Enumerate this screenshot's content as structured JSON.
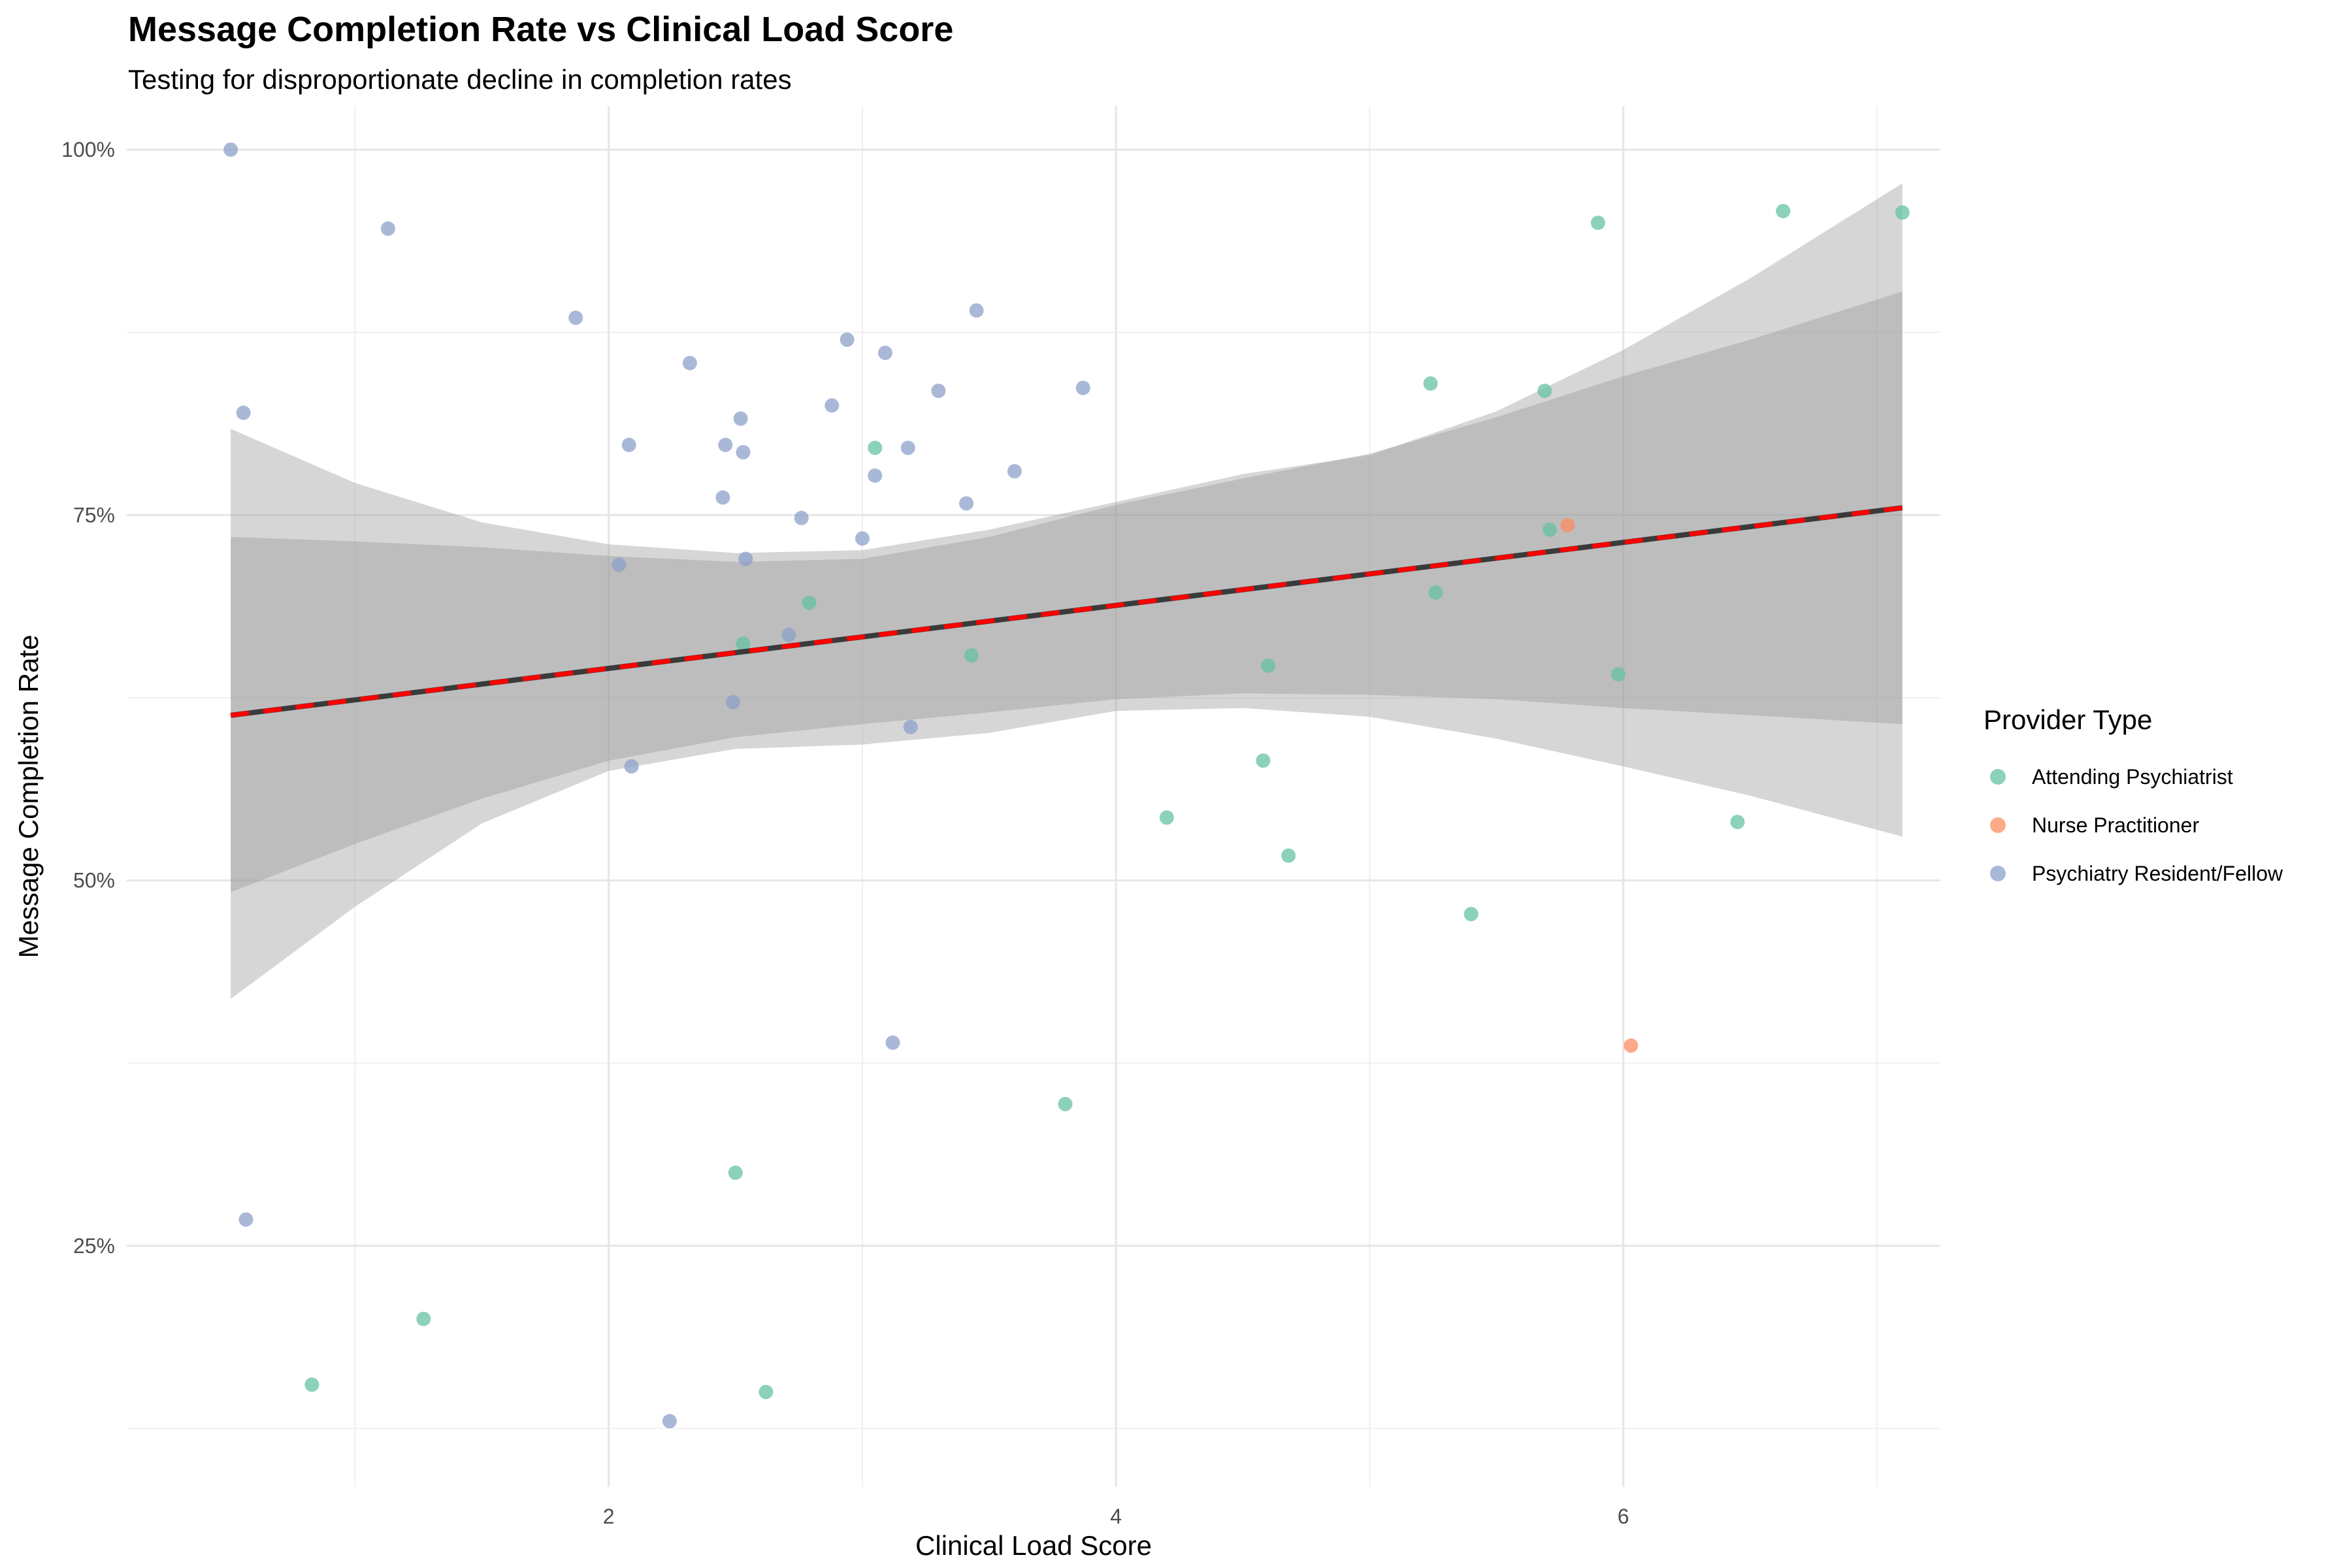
{
  "chart_data": {
    "type": "scatter",
    "title": "Message Completion Rate vs Clinical Load Score",
    "subtitle": "Testing for disproportionate decline in completion rates",
    "xlabel": "Clinical Load Score",
    "ylabel": "Message Completion Rate",
    "xlim": [
      0.1,
      7.25
    ],
    "ylim": [
      0.085,
      1.03
    ],
    "x_ticks": [
      2,
      4,
      6
    ],
    "x_tick_labels": [
      "2",
      "4",
      "6"
    ],
    "y_ticks": [
      0.25,
      0.5,
      0.75,
      1.0
    ],
    "y_tick_labels": [
      "25%",
      "50%",
      "75%",
      "100%"
    ],
    "grid": true,
    "legend": {
      "title": "Provider Type",
      "position": "right"
    },
    "series": [
      {
        "name": "Attending Psychiatrist",
        "color": "#66c2a5",
        "points": [
          [
            0.83,
            0.155
          ],
          [
            1.27,
            0.2
          ],
          [
            2.5,
            0.3
          ],
          [
            2.62,
            0.15
          ],
          [
            3.8,
            0.347
          ],
          [
            4.2,
            0.543
          ],
          [
            4.58,
            0.582
          ],
          [
            4.68,
            0.517
          ],
          [
            4.6,
            0.647
          ],
          [
            5.24,
            0.84
          ],
          [
            5.26,
            0.697
          ],
          [
            5.4,
            0.477
          ],
          [
            5.69,
            0.835
          ],
          [
            5.71,
            0.74
          ],
          [
            5.9,
            0.95
          ],
          [
            5.98,
            0.641
          ],
          [
            6.45,
            0.54
          ],
          [
            6.63,
            0.958
          ],
          [
            7.1,
            0.957
          ],
          [
            3.05,
            0.796
          ],
          [
            2.79,
            0.69
          ],
          [
            3.43,
            0.654
          ],
          [
            2.53,
            0.662
          ]
        ]
      },
      {
        "name": "Nurse Practitioner",
        "color": "#fc8d62",
        "points": [
          [
            5.78,
            0.743
          ],
          [
            6.03,
            0.387
          ]
        ]
      },
      {
        "name": "Psychiatry Resident/Fellow",
        "color": "#8da0cb",
        "points": [
          [
            0.51,
            1.0
          ],
          [
            0.56,
            0.82
          ],
          [
            0.57,
            0.268
          ],
          [
            1.13,
            0.946
          ],
          [
            1.87,
            0.885
          ],
          [
            2.04,
            0.716
          ],
          [
            2.08,
            0.798
          ],
          [
            2.09,
            0.578
          ],
          [
            2.24,
            0.13
          ],
          [
            2.32,
            0.854
          ],
          [
            2.45,
            0.762
          ],
          [
            2.46,
            0.798
          ],
          [
            2.49,
            0.622
          ],
          [
            2.52,
            0.816
          ],
          [
            2.53,
            0.793
          ],
          [
            2.54,
            0.72
          ],
          [
            2.71,
            0.668
          ],
          [
            2.76,
            0.748
          ],
          [
            2.88,
            0.825
          ],
          [
            2.94,
            0.87
          ],
          [
            3.0,
            0.734
          ],
          [
            3.05,
            0.777
          ],
          [
            3.09,
            0.861
          ],
          [
            3.12,
            0.389
          ],
          [
            3.18,
            0.796
          ],
          [
            3.19,
            0.605
          ],
          [
            3.3,
            0.835
          ],
          [
            3.41,
            0.758
          ],
          [
            3.45,
            0.89
          ],
          [
            3.6,
            0.78
          ],
          [
            3.87,
            0.837
          ]
        ]
      }
    ],
    "fit_lines": [
      {
        "style": "solid",
        "color": "#3a3a3a",
        "x": [
          0.51,
          7.1
        ],
        "y": [
          0.613,
          0.755
        ]
      },
      {
        "style": "dashed",
        "color": "#ff0000",
        "x": [
          0.51,
          7.1
        ],
        "y": [
          0.613,
          0.755
        ]
      }
    ],
    "confidence_bands": [
      {
        "x": [
          0.51,
          1.0,
          1.5,
          2.0,
          2.5,
          3.0,
          3.5,
          4.0,
          4.5,
          5.0,
          5.5,
          6.0,
          6.5,
          7.1
        ],
        "lower": [
          0.492,
          0.525,
          0.556,
          0.582,
          0.598,
          0.607,
          0.615,
          0.624,
          0.628,
          0.627,
          0.624,
          0.618,
          0.613,
          0.607
        ],
        "upper": [
          0.735,
          0.732,
          0.728,
          0.722,
          0.718,
          0.72,
          0.735,
          0.757,
          0.775,
          0.792,
          0.817,
          0.845,
          0.87,
          0.903
        ]
      },
      {
        "x": [
          0.51,
          1.0,
          1.5,
          2.0,
          2.5,
          3.0,
          3.5,
          4.0,
          4.5,
          5.0,
          5.5,
          6.0,
          6.5,
          7.1
        ],
        "lower": [
          0.419,
          0.482,
          0.539,
          0.575,
          0.59,
          0.593,
          0.601,
          0.616,
          0.618,
          0.612,
          0.597,
          0.578,
          0.558,
          0.53
        ],
        "upper": [
          0.809,
          0.772,
          0.745,
          0.73,
          0.724,
          0.726,
          0.74,
          0.759,
          0.778,
          0.791,
          0.821,
          0.863,
          0.912,
          0.977
        ]
      }
    ]
  }
}
